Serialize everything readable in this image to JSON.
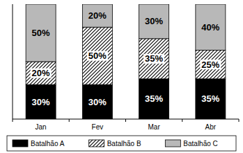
{
  "chart_data": {
    "type": "bar",
    "stacked": true,
    "data_labels": true,
    "tick_labels": "x",
    "legend": "bottom",
    "categories": [
      "Jan",
      "Fev",
      "Mar",
      "Abr"
    ],
    "ylim": [
      0,
      100
    ],
    "series": [
      {
        "name": "Batalhão A",
        "color": "#000000",
        "values": [
          30,
          30,
          35,
          35
        ],
        "value_labels": [
          "30%",
          "30%",
          "35%",
          "35%"
        ]
      },
      {
        "name": "Batalhão B",
        "color": "#000000",
        "values": [
          20,
          50,
          35,
          25
        ],
        "value_labels": [
          "20%",
          "50%",
          "35%",
          "25%"
        ]
      },
      {
        "name": "Batalhão C",
        "color": "#b8b8b8",
        "values": [
          50,
          20,
          30,
          40
        ],
        "value_labels": [
          "50%",
          "20%",
          "30%",
          "40%"
        ]
      }
    ]
  }
}
